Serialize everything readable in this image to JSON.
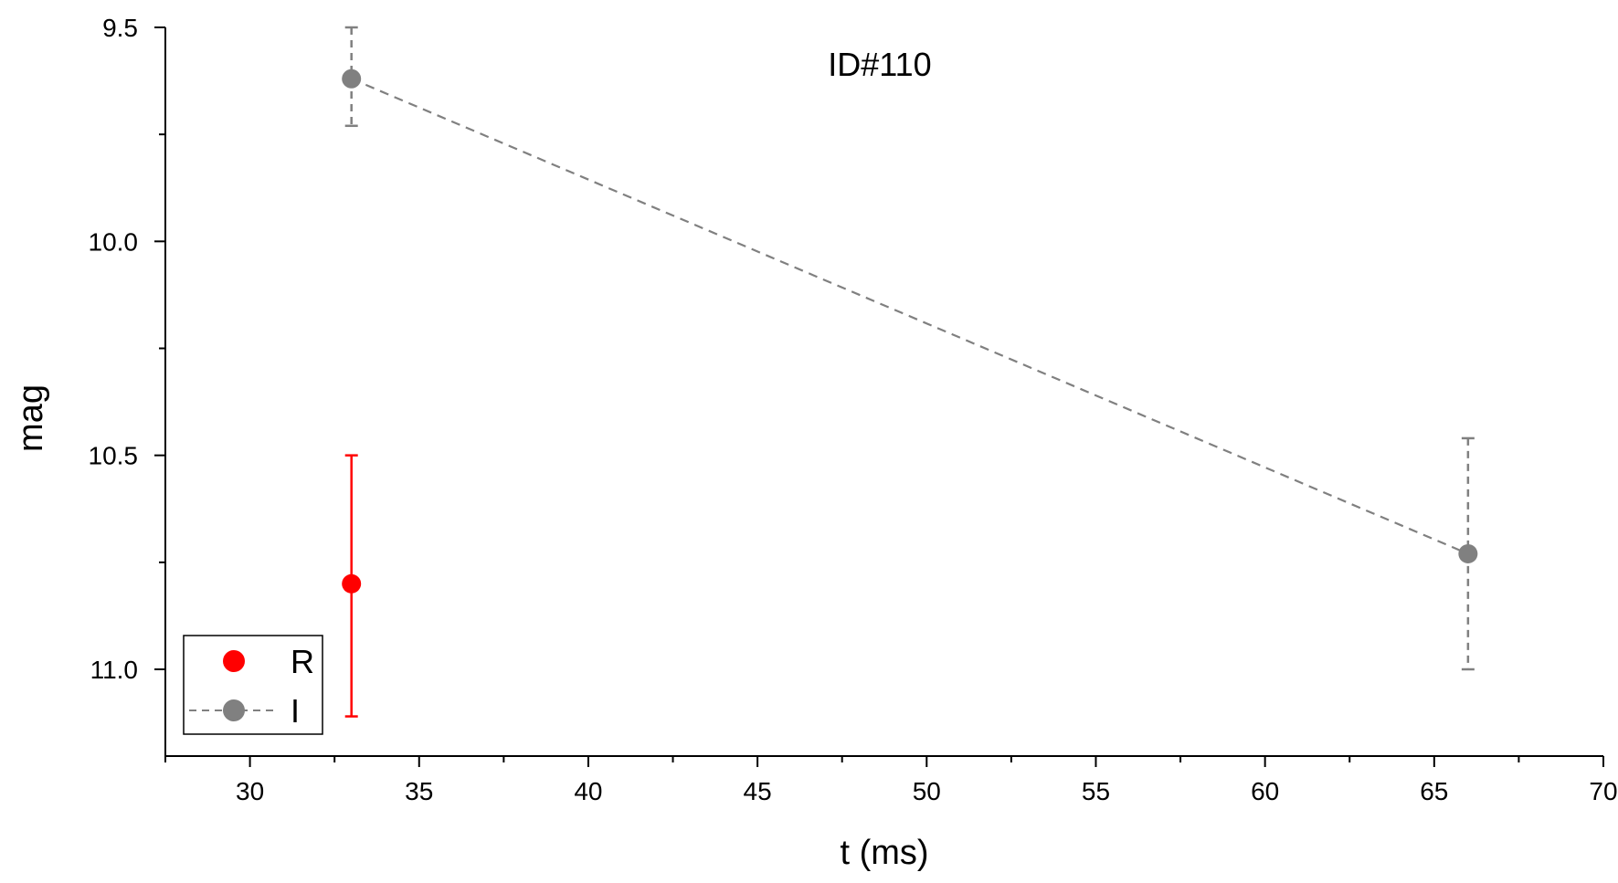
{
  "chart_data": {
    "type": "scatter",
    "title": "ID#110",
    "xlabel": "t (ms)",
    "ylabel": "mag",
    "xlim": [
      27.5,
      70
    ],
    "ylim": [
      9.5,
      11.2
    ],
    "y_inverted": true,
    "xticks": [
      30,
      35,
      40,
      45,
      50,
      55,
      60,
      65,
      70
    ],
    "xtick_labels": [
      "30",
      "35",
      "40",
      "45",
      "50",
      "55",
      "60",
      "65",
      "70"
    ],
    "yticks": [
      9.5,
      10.0,
      10.5,
      11.0
    ],
    "ytick_labels": [
      "9.5",
      "10.0",
      "10.5",
      "11.0"
    ],
    "grid": false,
    "legend_position": "bottom-left",
    "series": [
      {
        "name": "R",
        "color": "#ff0000",
        "line": "none",
        "points": [
          {
            "x": 33,
            "y": 10.8,
            "err_low": 10.5,
            "err_high": 11.11
          }
        ]
      },
      {
        "name": "I",
        "color": "#808080",
        "line": "dashed",
        "points": [
          {
            "x": 33,
            "y": 9.62,
            "err_low": 9.5,
            "err_high": 9.73
          },
          {
            "x": 66,
            "y": 10.73,
            "err_low": 10.46,
            "err_high": 11.0
          }
        ]
      }
    ]
  }
}
